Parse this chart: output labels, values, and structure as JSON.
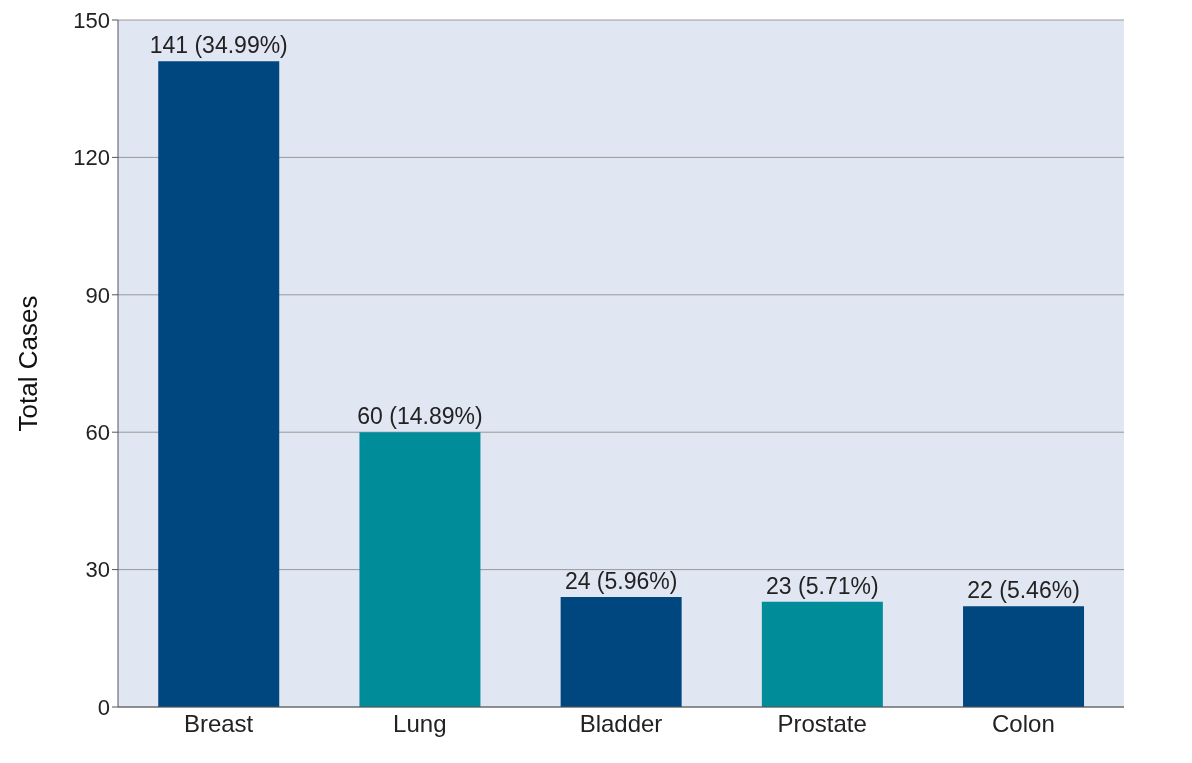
{
  "chart_data": {
    "type": "bar",
    "ylabel": "Total Cases",
    "categories": [
      "Breast",
      "Lung",
      "Bladder",
      "Prostate",
      "Colon"
    ],
    "values": [
      141,
      60,
      24,
      23,
      22
    ],
    "colors": [
      "#00467f",
      "#008c99",
      "#00467f",
      "#008c99",
      "#00467f"
    ],
    "value_labels": [
      "141 (34.99%)",
      "60 (14.89%)",
      "24 (5.96%)",
      "23 (5.71%)",
      "22 (5.46%)"
    ],
    "ylim": [
      0,
      150
    ],
    "yticks": [
      0,
      30,
      60,
      90,
      120,
      150
    ],
    "grid": "y"
  }
}
